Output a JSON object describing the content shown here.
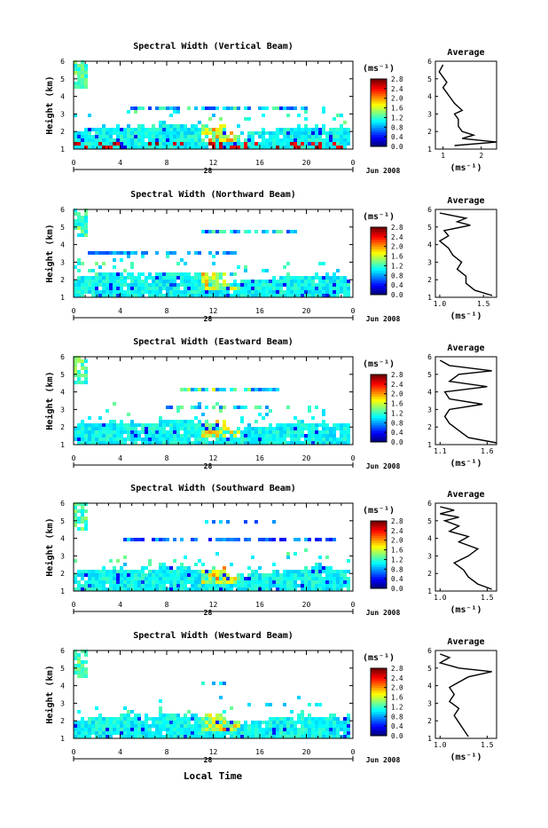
{
  "figure": {
    "bottom_xlabel": "Local Time",
    "date_label": "28",
    "month_label": "Jun 2008"
  },
  "chart_data": [
    {
      "type": "heatmap",
      "title": "Spectral Width (Vertical Beam)",
      "ylabel": "Height (km)",
      "yticks": [
        "1",
        "2",
        "3",
        "4",
        "5",
        "6"
      ],
      "ylim": [
        1,
        6
      ],
      "xticks": [
        "0",
        "4",
        "8",
        "12",
        "16",
        "20",
        "0"
      ],
      "xlim": [
        0,
        24
      ],
      "colorbar_label": "(ms⁻¹)",
      "colorbar_ticks": [
        "2.8",
        "2.4",
        "2.0",
        "1.6",
        "1.2",
        "0.8",
        "0.4",
        "0.0"
      ],
      "colorbar_range": [
        0.0,
        2.8
      ],
      "average_title": "Average",
      "average_xticks": [
        "1",
        "2"
      ],
      "average_xlim": [
        0.8,
        2.4
      ],
      "average_xlabel": "(ms⁻¹)",
      "average_profile": [
        [
          1.3,
          1.2
        ],
        [
          2.4,
          1.4
        ],
        [
          1.5,
          1.6
        ],
        [
          1.8,
          1.8
        ],
        [
          1.5,
          2.0
        ],
        [
          1.4,
          2.3
        ],
        [
          1.4,
          2.7
        ],
        [
          1.3,
          3.0
        ],
        [
          1.5,
          3.2
        ],
        [
          1.3,
          3.6
        ],
        [
          1.2,
          3.9
        ],
        [
          1.1,
          4.2
        ],
        [
          1.0,
          4.5
        ],
        [
          1.1,
          4.8
        ],
        [
          1.0,
          5.1
        ],
        [
          0.9,
          5.4
        ],
        [
          1.0,
          5.8
        ]
      ]
    },
    {
      "type": "heatmap",
      "title": "Spectral Width (Northward Beam)",
      "ylabel": "Height (km)",
      "yticks": [
        "1",
        "2",
        "3",
        "4",
        "5",
        "6"
      ],
      "ylim": [
        1,
        6
      ],
      "xticks": [
        "0",
        "4",
        "8",
        "12",
        "16",
        "20",
        "0"
      ],
      "xlim": [
        0,
        24
      ],
      "colorbar_label": "(ms⁻¹)",
      "colorbar_ticks": [
        "2.8",
        "2.4",
        "2.0",
        "1.6",
        "1.2",
        "0.8",
        "0.4",
        "0.0"
      ],
      "colorbar_range": [
        0.0,
        2.8
      ],
      "average_title": "Average",
      "average_xticks": [
        "1.0",
        "1.5"
      ],
      "average_xlim": [
        0.95,
        1.65
      ],
      "average_xlabel": "(ms⁻¹)",
      "average_profile": [
        [
          1.6,
          1.1
        ],
        [
          1.4,
          1.4
        ],
        [
          1.3,
          1.8
        ],
        [
          1.3,
          2.2
        ],
        [
          1.2,
          2.6
        ],
        [
          1.25,
          3.0
        ],
        [
          1.15,
          3.4
        ],
        [
          1.1,
          3.8
        ],
        [
          1.0,
          4.2
        ],
        [
          1.1,
          4.5
        ],
        [
          1.05,
          4.8
        ],
        [
          1.35,
          5.1
        ],
        [
          1.2,
          5.3
        ],
        [
          1.3,
          5.5
        ],
        [
          1.0,
          5.8
        ]
      ]
    },
    {
      "type": "heatmap",
      "title": "Spectral Width (Eastward Beam)",
      "ylabel": "Height (km)",
      "yticks": [
        "1",
        "2",
        "3",
        "4",
        "5",
        "6"
      ],
      "ylim": [
        1,
        6
      ],
      "xticks": [
        "0",
        "4",
        "8",
        "12",
        "16",
        "20",
        "0"
      ],
      "xlim": [
        0,
        24
      ],
      "colorbar_label": "(ms⁻¹)",
      "colorbar_ticks": [
        "2.8",
        "2.4",
        "2.0",
        "1.6",
        "1.2",
        "0.8",
        "0.4",
        "0.0"
      ],
      "colorbar_range": [
        0.0,
        2.8
      ],
      "average_title": "Average",
      "average_xticks": [
        "1.1",
        "1.6"
      ],
      "average_xlim": [
        1.05,
        1.7
      ],
      "average_xlabel": "(ms⁻¹)",
      "average_profile": [
        [
          1.7,
          1.1
        ],
        [
          1.4,
          1.4
        ],
        [
          1.3,
          1.8
        ],
        [
          1.2,
          2.2
        ],
        [
          1.15,
          2.6
        ],
        [
          1.2,
          3.0
        ],
        [
          1.55,
          3.3
        ],
        [
          1.2,
          3.6
        ],
        [
          1.15,
          4.0
        ],
        [
          1.6,
          4.3
        ],
        [
          1.2,
          4.6
        ],
        [
          1.3,
          5.0
        ],
        [
          1.65,
          5.2
        ],
        [
          1.2,
          5.5
        ],
        [
          1.1,
          5.8
        ]
      ]
    },
    {
      "type": "heatmap",
      "title": "Spectral Width (Southward Beam)",
      "ylabel": "Height (km)",
      "yticks": [
        "1",
        "2",
        "3",
        "4",
        "5",
        "6"
      ],
      "ylim": [
        1,
        6
      ],
      "xticks": [
        "0",
        "4",
        "8",
        "12",
        "16",
        "20",
        "0"
      ],
      "xlim": [
        0,
        24
      ],
      "colorbar_label": "(ms⁻¹)",
      "colorbar_ticks": [
        "2.8",
        "2.4",
        "2.0",
        "1.6",
        "1.2",
        "0.8",
        "0.4",
        "0.0"
      ],
      "colorbar_range": [
        0.0,
        2.8
      ],
      "average_title": "Average",
      "average_xticks": [
        "1.0",
        "1.5"
      ],
      "average_xlim": [
        0.95,
        1.6
      ],
      "average_xlabel": "(ms⁻¹)",
      "average_profile": [
        [
          1.55,
          1.1
        ],
        [
          1.4,
          1.4
        ],
        [
          1.3,
          1.8
        ],
        [
          1.25,
          2.2
        ],
        [
          1.15,
          2.6
        ],
        [
          1.3,
          3.0
        ],
        [
          1.4,
          3.4
        ],
        [
          1.2,
          3.8
        ],
        [
          1.3,
          4.1
        ],
        [
          1.1,
          4.4
        ],
        [
          1.2,
          4.7
        ],
        [
          1.05,
          5.0
        ],
        [
          1.2,
          5.2
        ],
        [
          1.0,
          5.4
        ],
        [
          1.15,
          5.6
        ],
        [
          1.0,
          5.8
        ]
      ]
    },
    {
      "type": "heatmap",
      "title": "Spectral Width (Westward Beam)",
      "ylabel": "Height (km)",
      "yticks": [
        "1",
        "2",
        "3",
        "4",
        "5",
        "6"
      ],
      "ylim": [
        1,
        6
      ],
      "xticks": [
        "0",
        "4",
        "8",
        "12",
        "16",
        "20",
        "0"
      ],
      "xlim": [
        0,
        24
      ],
      "colorbar_label": "(ms⁻¹)",
      "colorbar_ticks": [
        "2.8",
        "2.4",
        "2.0",
        "1.6",
        "1.2",
        "0.8",
        "0.4",
        "0.0"
      ],
      "colorbar_range": [
        0.0,
        2.8
      ],
      "average_title": "Average",
      "average_xticks": [
        "1.0",
        "1.5"
      ],
      "average_xlim": [
        0.95,
        1.6
      ],
      "average_xlabel": "(ms⁻¹)",
      "average_profile": [
        [
          1.3,
          1.1
        ],
        [
          1.25,
          1.5
        ],
        [
          1.2,
          1.9
        ],
        [
          1.15,
          2.3
        ],
        [
          1.2,
          2.7
        ],
        [
          1.1,
          3.1
        ],
        [
          1.15,
          3.5
        ],
        [
          1.1,
          3.9
        ],
        [
          1.2,
          4.2
        ],
        [
          1.3,
          4.5
        ],
        [
          1.55,
          4.8
        ],
        [
          1.2,
          5.0
        ],
        [
          1.0,
          5.3
        ],
        [
          1.1,
          5.6
        ],
        [
          1.0,
          5.8
        ]
      ]
    }
  ]
}
